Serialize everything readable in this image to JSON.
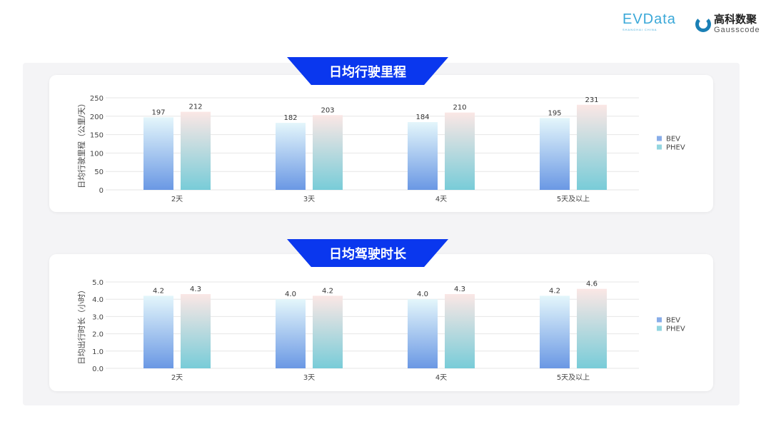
{
  "logos": {
    "evdata": "EVData",
    "evdata_sub": "SHANGHAI CHINA",
    "gauss_cn": "高科数聚",
    "gauss_en": "Gausscode"
  },
  "colors": {
    "bev_top": "#e4f6fb",
    "bev_bottom": "#6a98e4",
    "phev_top": "#fbe7e5",
    "phev_bottom": "#78ccd8",
    "banner": "#0a37ee"
  },
  "chart_data": [
    {
      "type": "bar",
      "title": "日均行驶里程",
      "ylabel": "日均行驶里程（公里/天）",
      "categories": [
        "2天",
        "3天",
        "4天",
        "5天及以上"
      ],
      "yticks": [
        "0",
        "50",
        "100",
        "150",
        "200",
        "250"
      ],
      "ylim": [
        0,
        250
      ],
      "legend": "right",
      "grid": true,
      "series": [
        {
          "name": "BEV",
          "values": [
            197,
            182,
            184,
            195
          ],
          "labels": [
            "197",
            "182",
            "184",
            "195"
          ]
        },
        {
          "name": "PHEV",
          "values": [
            212,
            203,
            210,
            231
          ],
          "labels": [
            "212",
            "203",
            "210",
            "231"
          ]
        }
      ]
    },
    {
      "type": "bar",
      "title": "日均驾驶时长",
      "ylabel": "日均出行时长（小时）",
      "categories": [
        "2天",
        "3天",
        "4天",
        "5天及以上"
      ],
      "yticks": [
        "0.0",
        "1.0",
        "2.0",
        "3.0",
        "4.0",
        "5.0"
      ],
      "ylim": [
        0,
        5
      ],
      "legend": "right",
      "grid": true,
      "series": [
        {
          "name": "BEV",
          "values": [
            4.2,
            4.0,
            4.0,
            4.2
          ],
          "labels": [
            "4.2",
            "4.0",
            "4.0",
            "4.2"
          ]
        },
        {
          "name": "PHEV",
          "values": [
            4.3,
            4.2,
            4.3,
            4.6
          ],
          "labels": [
            "4.3",
            "4.2",
            "4.3",
            "4.6"
          ]
        }
      ]
    }
  ]
}
